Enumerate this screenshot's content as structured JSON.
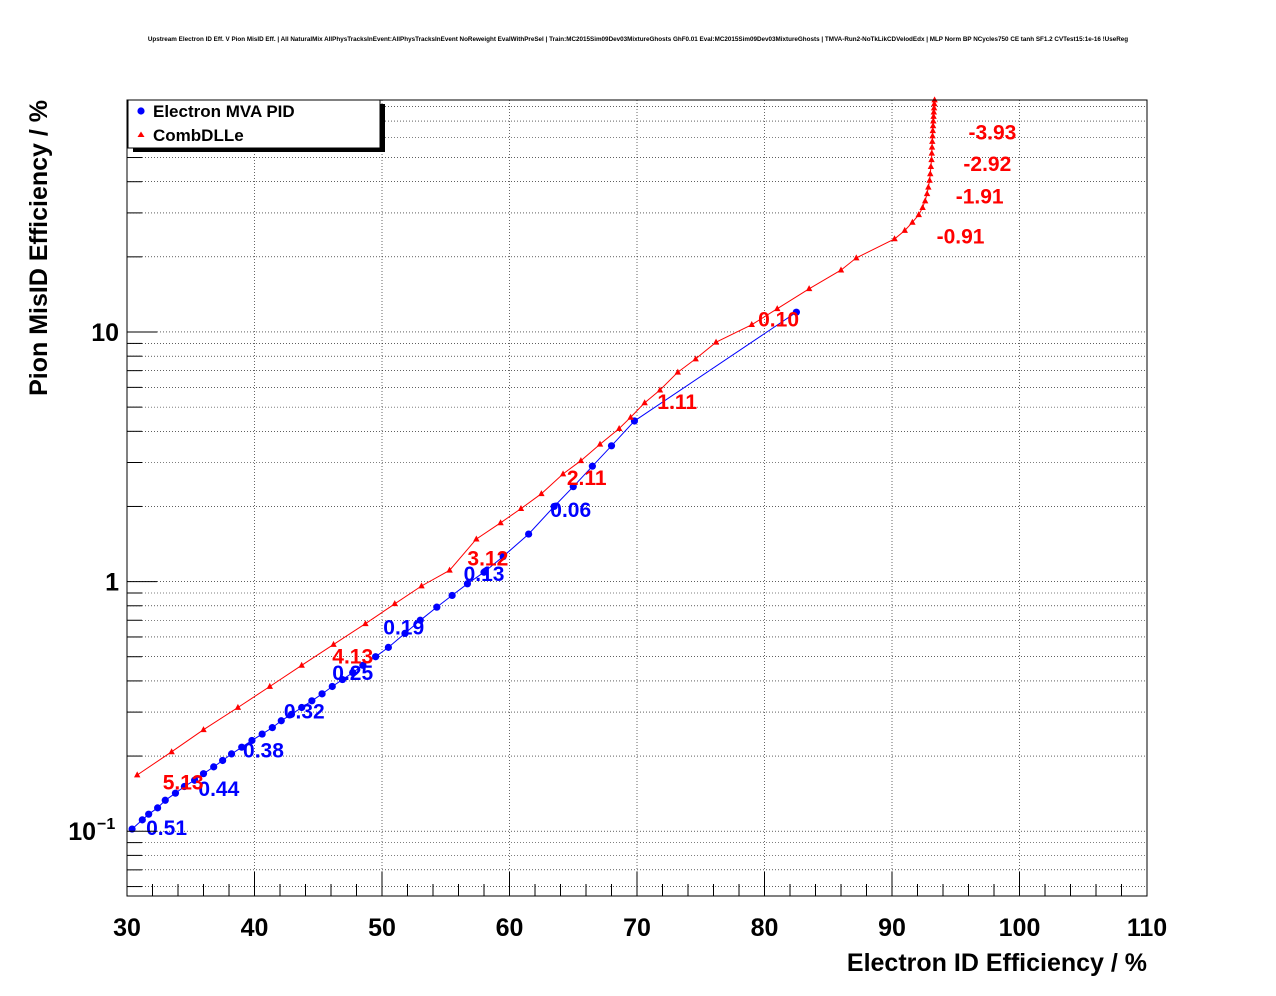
{
  "chart_data": {
    "type": "scatter",
    "title": "Upstream Electron ID Eff. V Pion MisID Eff. | All NaturalMix AllPhysTracksInEvent:AllPhysTracksInEvent NoReweight EvalWithPreSel | Train:MC2015Sim09Dev03MixtureGhosts GhF0.01 Eval:MC2015Sim09Dev03MixtureGhosts | TMVA-Run2-NoTkLikCDVelodEdx | MLP Norm BP NCycles750 CE tanh SF1.2 CVTest15:1e-16 !UseReg",
    "xlabel": "Electron ID Efficiency / %",
    "ylabel": "Pion MisID Efficiency / %",
    "xlim": [
      30,
      110
    ],
    "ylim": [
      0.055,
      85
    ],
    "yscale": "log",
    "grid": true,
    "x_ticks": [
      30,
      40,
      50,
      60,
      70,
      80,
      90,
      100,
      110
    ],
    "y_ticks": [
      {
        "value": 0.1,
        "label": "10",
        "exp": "−1"
      },
      {
        "value": 1,
        "label": "1",
        "exp": ""
      },
      {
        "value": 10,
        "label": "10",
        "exp": ""
      }
    ],
    "legend": {
      "placement": "top-left",
      "entries": [
        {
          "name": "Electron MVA PID",
          "color": "#0000ff",
          "marker": "circle"
        },
        {
          "name": "CombDLLe",
          "color": "#ff0000",
          "marker": "triangle"
        }
      ]
    },
    "series": [
      {
        "name": "Electron MVA PID",
        "color": "#0000ff",
        "marker": "circle",
        "points": [
          [
            30.4,
            0.102
          ],
          [
            31.2,
            0.111
          ],
          [
            31.7,
            0.117
          ],
          [
            32.4,
            0.124
          ],
          [
            33.0,
            0.133
          ],
          [
            33.8,
            0.142
          ],
          [
            34.5,
            0.151
          ],
          [
            35.3,
            0.16
          ],
          [
            36.0,
            0.17
          ],
          [
            36.8,
            0.181
          ],
          [
            37.5,
            0.192
          ],
          [
            38.2,
            0.204
          ],
          [
            39.0,
            0.217
          ],
          [
            39.8,
            0.231
          ],
          [
            40.6,
            0.245
          ],
          [
            41.4,
            0.26
          ],
          [
            42.1,
            0.277
          ],
          [
            42.9,
            0.294
          ],
          [
            43.7,
            0.313
          ],
          [
            44.5,
            0.333
          ],
          [
            45.3,
            0.355
          ],
          [
            46.1,
            0.38
          ],
          [
            46.9,
            0.405
          ],
          [
            47.7,
            0.432
          ],
          [
            48.5,
            0.462
          ],
          [
            49.5,
            0.5
          ],
          [
            50.5,
            0.545
          ],
          [
            51.8,
            0.62
          ],
          [
            53.0,
            0.7
          ],
          [
            54.3,
            0.79
          ],
          [
            55.5,
            0.88
          ],
          [
            56.7,
            0.98
          ],
          [
            58.0,
            1.09
          ],
          [
            59.5,
            1.26
          ],
          [
            61.5,
            1.55
          ],
          [
            63.5,
            2.0
          ],
          [
            65.0,
            2.4
          ],
          [
            66.5,
            2.9
          ],
          [
            68.0,
            3.5
          ],
          [
            69.8,
            4.4
          ],
          [
            82.5,
            12.0
          ]
        ],
        "labels": [
          {
            "x": 31.5,
            "y": 0.104,
            "text": "0.51"
          },
          {
            "x": 35.6,
            "y": 0.149,
            "text": "0.44"
          },
          {
            "x": 39.1,
            "y": 0.212,
            "text": "0.38"
          },
          {
            "x": 42.3,
            "y": 0.305,
            "text": "0.32"
          },
          {
            "x": 46.1,
            "y": 0.435,
            "text": "0.25"
          },
          {
            "x": 50.1,
            "y": 0.66,
            "text": "0.19"
          },
          {
            "x": 56.4,
            "y": 1.08,
            "text": "0.13"
          },
          {
            "x": 63.2,
            "y": 1.95,
            "text": "0.06"
          }
        ]
      },
      {
        "name": "CombDLLe",
        "color": "#ff0000",
        "marker": "triangle",
        "points": [
          [
            30.8,
            0.168
          ],
          [
            33.5,
            0.208
          ],
          [
            36.0,
            0.255
          ],
          [
            38.7,
            0.313
          ],
          [
            41.2,
            0.38
          ],
          [
            43.7,
            0.462
          ],
          [
            46.2,
            0.56
          ],
          [
            48.7,
            0.678
          ],
          [
            51.0,
            0.815
          ],
          [
            53.1,
            0.96
          ],
          [
            55.3,
            1.11
          ],
          [
            57.4,
            1.48
          ],
          [
            59.3,
            1.72
          ],
          [
            60.9,
            1.96
          ],
          [
            62.5,
            2.25
          ],
          [
            64.2,
            2.7
          ],
          [
            65.6,
            3.05
          ],
          [
            67.1,
            3.55
          ],
          [
            68.6,
            4.1
          ],
          [
            69.5,
            4.55
          ],
          [
            70.6,
            5.2
          ],
          [
            71.8,
            5.85
          ],
          [
            73.2,
            6.9
          ],
          [
            74.6,
            7.8
          ],
          [
            76.2,
            9.1
          ],
          [
            79.0,
            10.7
          ],
          [
            81.0,
            12.4
          ],
          [
            83.5,
            14.9
          ],
          [
            86.0,
            17.7
          ],
          [
            87.2,
            19.8
          ],
          [
            90.2,
            23.6
          ],
          [
            91.0,
            25.5
          ],
          [
            91.6,
            27.5
          ],
          [
            92.1,
            29.5
          ],
          [
            92.4,
            31.5
          ],
          [
            92.6,
            33.5
          ],
          [
            92.75,
            35.8
          ],
          [
            92.85,
            38.0
          ],
          [
            92.95,
            40.5
          ],
          [
            93.0,
            43.0
          ],
          [
            93.05,
            46.0
          ],
          [
            93.1,
            49.0
          ],
          [
            93.12,
            52.0
          ],
          [
            93.14,
            55.0
          ],
          [
            93.16,
            58.0
          ],
          [
            93.18,
            61.0
          ],
          [
            93.2,
            64.0
          ],
          [
            93.22,
            67.0
          ],
          [
            93.24,
            70.0
          ],
          [
            93.26,
            73.0
          ],
          [
            93.28,
            76.0
          ],
          [
            93.3,
            79.0
          ],
          [
            93.32,
            82.0
          ],
          [
            93.34,
            85.0
          ]
        ],
        "labels": [
          {
            "x": 32.8,
            "y": 0.158,
            "text": "5.13"
          },
          {
            "x": 46.1,
            "y": 0.505,
            "text": "4.13"
          },
          {
            "x": 56.7,
            "y": 1.25,
            "text": "3.12"
          },
          {
            "x": 64.5,
            "y": 2.63,
            "text": "2.11"
          },
          {
            "x": 71.6,
            "y": 5.28,
            "text": "1.11"
          },
          {
            "x": 79.5,
            "y": 11.3,
            "text": "0.10"
          },
          {
            "x": 93.5,
            "y": 24.4,
            "text": "-0.91"
          },
          {
            "x": 95.0,
            "y": 35.2,
            "text": "-1.91"
          },
          {
            "x": 95.6,
            "y": 47.5,
            "text": "-2.92"
          },
          {
            "x": 96.0,
            "y": 63.5,
            "text": "-3.93"
          }
        ]
      }
    ]
  }
}
